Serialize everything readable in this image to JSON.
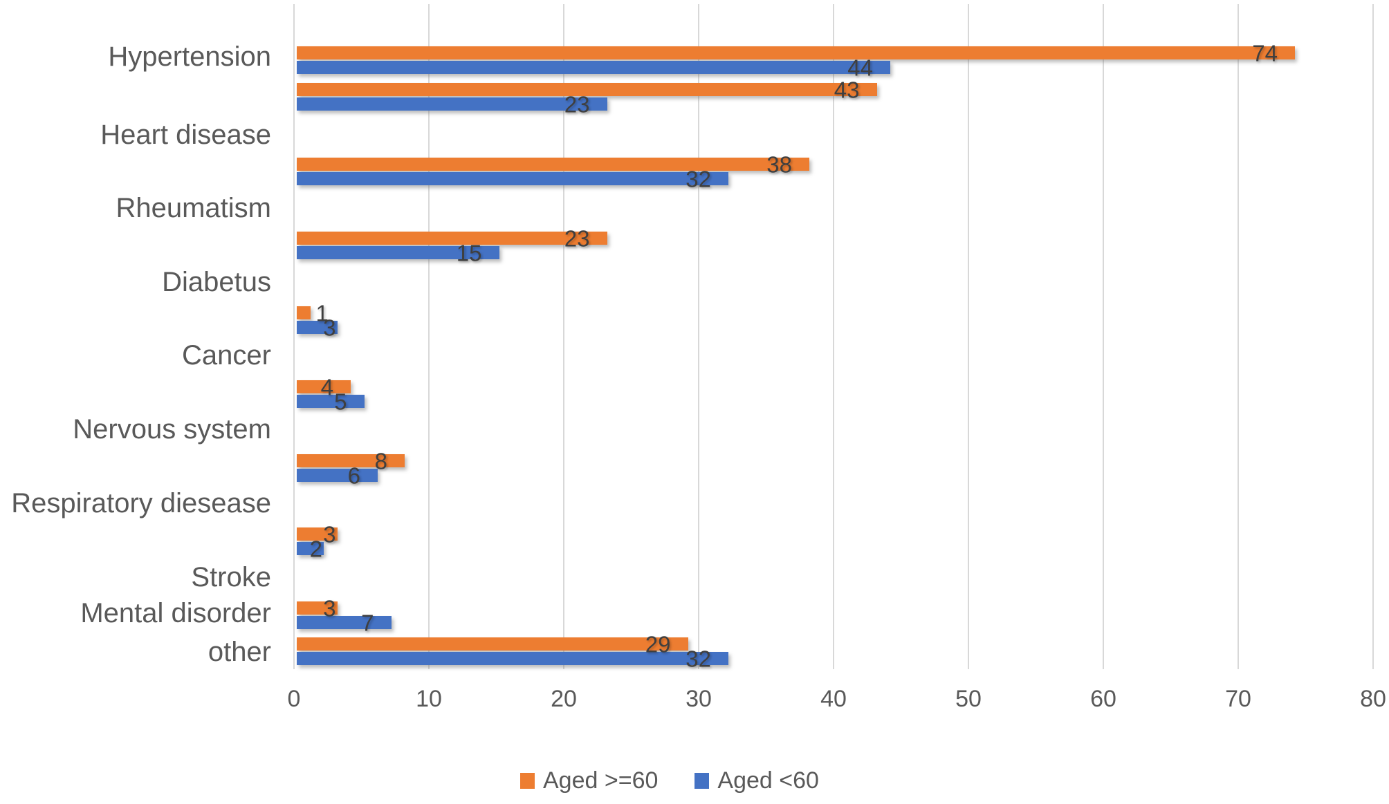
{
  "chart_data": {
    "type": "bar",
    "orientation": "horizontal",
    "title": "",
    "categories": [
      "Hypertension",
      "Heart disease",
      "Rheumatism",
      "Diabetus",
      "Cancer",
      "Nervous system",
      "Respiratory diesease",
      "Stroke",
      "Mental disorder",
      "other"
    ],
    "series": [
      {
        "name": "Aged >=60",
        "color": "#ED7D31",
        "values": [
          74,
          43,
          38,
          23,
          1,
          4,
          8,
          3,
          3,
          29
        ]
      },
      {
        "name": "Aged <60",
        "color": "#4472C4",
        "values": [
          44,
          23,
          32,
          15,
          3,
          5,
          6,
          2,
          7,
          32
        ]
      }
    ],
    "x_ticks": [
      "0",
      "10",
      "20",
      "30",
      "40",
      "50",
      "60",
      "70",
      "80"
    ],
    "xlim": [
      0,
      80
    ],
    "grid": true,
    "legend_position": "bottom",
    "data_labels": "inside-end",
    "colors": {
      "gridline": "#D8D8D8",
      "axis_text": "#595959",
      "value_text": "#3F3F3F",
      "background": "#FFFFFF"
    }
  }
}
